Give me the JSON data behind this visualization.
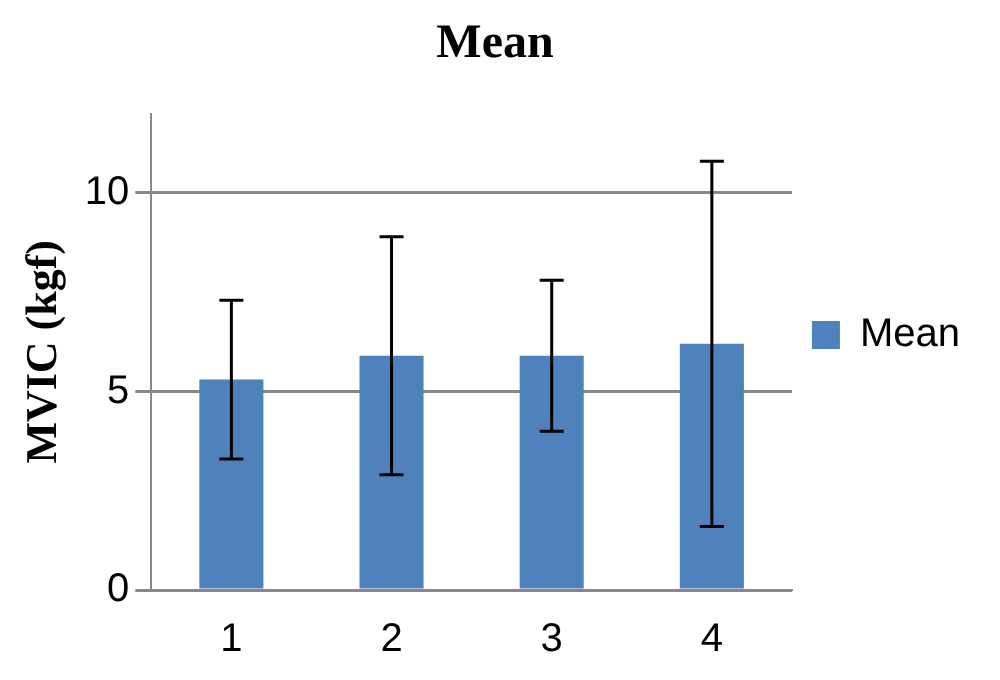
{
  "chart_data": {
    "type": "bar",
    "title": "Mean",
    "ylabel": "MVIC (kgf)",
    "categories": [
      "1",
      "2",
      "3",
      "4"
    ],
    "series": [
      {
        "name": "Mean",
        "color": "#4f81bd",
        "values": [
          5.3,
          5.9,
          5.9,
          6.2
        ],
        "errors": [
          2.0,
          3.0,
          1.9,
          4.6
        ]
      }
    ],
    "ylim": [
      0,
      12
    ],
    "yticks": [
      0,
      5,
      10
    ],
    "grid": "y",
    "legend": "right"
  }
}
